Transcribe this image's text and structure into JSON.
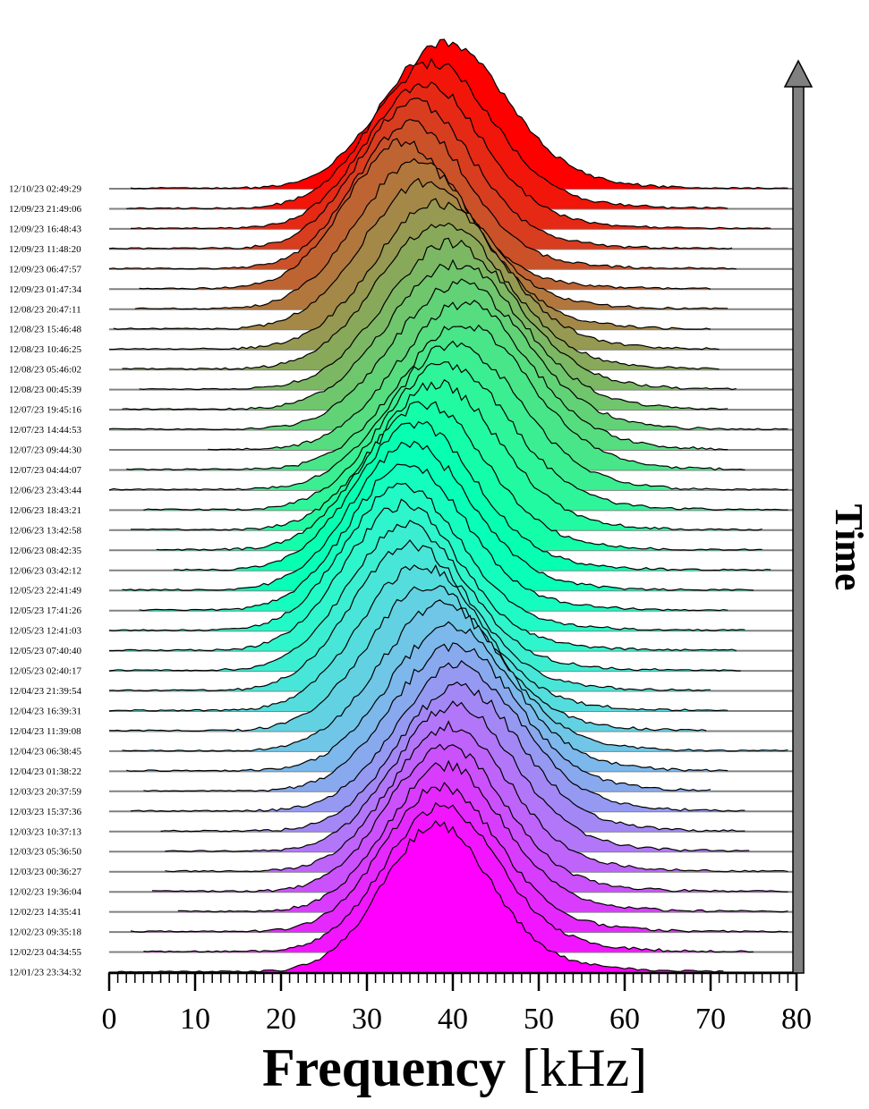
{
  "chart_data": {
    "type": "ridgeline",
    "x": {
      "label": "Frequency",
      "unit": "[kHz]",
      "lim": [
        0,
        80
      ],
      "major_ticks": [
        0,
        10,
        20,
        30,
        40,
        50,
        60,
        70,
        80
      ],
      "minor_tick_step": 1
    },
    "time_axis": {
      "label": "Time",
      "direction": "up"
    },
    "colormap": "rainbow (violet at oldest, red at newest)",
    "baseline_color": "#808080",
    "series_labels_top_to_bottom": [
      "12/10/23 02:49:29",
      "12/09/23 21:49:06",
      "12/09/23 16:48:43",
      "12/09/23 11:48:20",
      "12/09/23 06:47:57",
      "12/09/23 01:47:34",
      "12/08/23 20:47:11",
      "12/08/23 15:46:48",
      "12/08/23 10:46:25",
      "12/08/23 05:46:02",
      "12/08/23 00:45:39",
      "12/07/23 19:45:16",
      "12/07/23 14:44:53",
      "12/07/23 09:44:30",
      "12/07/23 04:44:07",
      "12/06/23 23:43:44",
      "12/06/23 18:43:21",
      "12/06/23 13:42:58",
      "12/06/23 08:42:35",
      "12/06/23 03:42:12",
      "12/05/23 22:41:49",
      "12/05/23 17:41:26",
      "12/05/23 12:41:03",
      "12/05/23 07:40:40",
      "12/05/23 02:40:17",
      "12/04/23 21:39:54",
      "12/04/23 16:39:31",
      "12/04/23 11:39:08",
      "12/04/23 06:38:45",
      "12/04/23 01:38:22",
      "12/03/23 20:37:59",
      "12/03/23 15:37:36",
      "12/03/23 10:37:13",
      "12/03/23 05:36:50",
      "12/03/23 00:36:27",
      "12/02/23 19:36:04",
      "12/02/23 14:35:41",
      "12/02/23 09:35:18",
      "12/02/23 04:34:55",
      "12/01/23 23:34:32"
    ],
    "series_params_top_to_bottom": [
      {
        "peak_khz": 39.0,
        "width_khz": 7.0,
        "x_start": 2.5,
        "x_end": 79.0
      },
      {
        "peak_khz": 37.5,
        "width_khz": 6.8,
        "x_start": 2.0,
        "x_end": 72.0
      },
      {
        "peak_khz": 36.5,
        "width_khz": 6.6,
        "x_start": 2.5,
        "x_end": 77.0
      },
      {
        "peak_khz": 35.5,
        "width_khz": 6.5,
        "x_start": 0.0,
        "x_end": 72.5
      },
      {
        "peak_khz": 35.0,
        "width_khz": 6.4,
        "x_start": 0.0,
        "x_end": 73.0
      },
      {
        "peak_khz": 34.0,
        "width_khz": 6.5,
        "x_start": 3.5,
        "x_end": 70.0
      },
      {
        "peak_khz": 35.5,
        "width_khz": 6.8,
        "x_start": 3.0,
        "x_end": 72.0
      },
      {
        "peak_khz": 36.5,
        "width_khz": 7.0,
        "x_start": 0.5,
        "x_end": 70.0
      },
      {
        "peak_khz": 38.0,
        "width_khz": 7.2,
        "x_start": 0.0,
        "x_end": 71.0
      },
      {
        "peak_khz": 38.5,
        "width_khz": 7.3,
        "x_start": 1.5,
        "x_end": 71.0
      },
      {
        "peak_khz": 39.5,
        "width_khz": 7.4,
        "x_start": 3.5,
        "x_end": 73.0
      },
      {
        "peak_khz": 40.0,
        "width_khz": 7.5,
        "x_start": 1.5,
        "x_end": 72.0
      },
      {
        "peak_khz": 40.5,
        "width_khz": 7.5,
        "x_start": 0.0,
        "x_end": 79.0
      },
      {
        "peak_khz": 41.0,
        "width_khz": 7.4,
        "x_start": 11.5,
        "x_end": 72.0
      },
      {
        "peak_khz": 41.0,
        "width_khz": 7.4,
        "x_start": 2.0,
        "x_end": 74.0
      },
      {
        "peak_khz": 40.0,
        "width_khz": 7.3,
        "x_start": 0.0,
        "x_end": 79.0
      },
      {
        "peak_khz": 39.0,
        "width_khz": 7.2,
        "x_start": 4.0,
        "x_end": 79.0
      },
      {
        "peak_khz": 38.0,
        "width_khz": 7.0,
        "x_start": 2.5,
        "x_end": 76.0
      },
      {
        "peak_khz": 36.5,
        "width_khz": 6.9,
        "x_start": 5.5,
        "x_end": 76.0
      },
      {
        "peak_khz": 35.5,
        "width_khz": 6.8,
        "x_start": 7.5,
        "x_end": 77.0
      },
      {
        "peak_khz": 35.0,
        "width_khz": 6.7,
        "x_start": 1.5,
        "x_end": 75.0
      },
      {
        "peak_khz": 34.5,
        "width_khz": 6.6,
        "x_start": 3.5,
        "x_end": 72.0
      },
      {
        "peak_khz": 34.0,
        "width_khz": 6.5,
        "x_start": 0.0,
        "x_end": 74.0
      },
      {
        "peak_khz": 34.0,
        "width_khz": 6.5,
        "x_start": 0.0,
        "x_end": 73.0
      },
      {
        "peak_khz": 34.5,
        "width_khz": 6.6,
        "x_start": 0.0,
        "x_end": 73.5
      },
      {
        "peak_khz": 35.0,
        "width_khz": 6.7,
        "x_start": 0.0,
        "x_end": 70.0
      },
      {
        "peak_khz": 36.0,
        "width_khz": 6.8,
        "x_start": 0.0,
        "x_end": 72.0
      },
      {
        "peak_khz": 37.0,
        "width_khz": 6.9,
        "x_start": 0.0,
        "x_end": 69.5
      },
      {
        "peak_khz": 38.5,
        "width_khz": 7.0,
        "x_start": 1.5,
        "x_end": 79.0
      },
      {
        "peak_khz": 39.5,
        "width_khz": 7.0,
        "x_start": 2.0,
        "x_end": 72.0
      },
      {
        "peak_khz": 40.0,
        "width_khz": 7.0,
        "x_start": 4.0,
        "x_end": 70.0
      },
      {
        "peak_khz": 40.5,
        "width_khz": 7.0,
        "x_start": 2.5,
        "x_end": 74.0
      },
      {
        "peak_khz": 40.5,
        "width_khz": 6.9,
        "x_start": 6.0,
        "x_end": 74.0
      },
      {
        "peak_khz": 40.0,
        "width_khz": 6.8,
        "x_start": 6.5,
        "x_end": 74.5
      },
      {
        "peak_khz": 39.5,
        "width_khz": 6.7,
        "x_start": 6.5,
        "x_end": 79.0
      },
      {
        "peak_khz": 39.0,
        "width_khz": 6.6,
        "x_start": 5.0,
        "x_end": 79.0
      },
      {
        "peak_khz": 39.0,
        "width_khz": 6.6,
        "x_start": 8.0,
        "x_end": 79.0
      },
      {
        "peak_khz": 38.5,
        "width_khz": 6.5,
        "x_start": 2.5,
        "x_end": 79.0
      },
      {
        "peak_khz": 38.5,
        "width_khz": 6.5,
        "x_start": 4.0,
        "x_end": 75.0
      },
      {
        "peak_khz": 38.0,
        "width_khz": 6.2,
        "x_start": 1.0,
        "x_end": 71.5
      }
    ]
  }
}
